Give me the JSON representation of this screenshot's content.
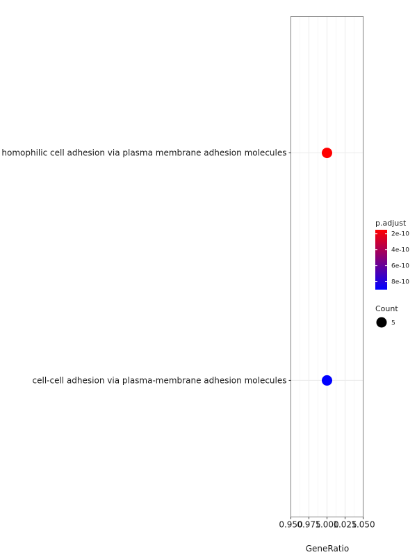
{
  "chart_data": {
    "type": "scatter",
    "title": "",
    "xlabel": "GeneRatio",
    "ylabel": "",
    "xlim": [
      0.95,
      1.05
    ],
    "x_ticks": [
      0.95,
      0.975,
      1.0,
      1.025,
      1.05
    ],
    "x_tick_labels": [
      "0.950",
      "0.975",
      "1.000",
      "1.025",
      "1.050"
    ],
    "grid": true,
    "legend_placement": "right",
    "categories": [
      "homophilic cell adhesion via plasma membrane adhesion molecules",
      "cell-cell adhesion via plasma-membrane adhesion molecules"
    ],
    "points": [
      {
        "term": "homophilic cell adhesion via plasma membrane adhesion molecules",
        "gene_ratio": 1.0,
        "count": 5,
        "p_adjust": 2e-10,
        "color": "#ff0000"
      },
      {
        "term": "cell-cell adhesion via plasma-membrane adhesion molecules",
        "gene_ratio": 1.0,
        "count": 5,
        "p_adjust": 9e-10,
        "color": "#0000ff"
      }
    ],
    "color_legend": {
      "title": "p.adjust",
      "low_color": "#ff0000",
      "high_color": "#0000ff",
      "range": [
        1.5e-10,
        9e-10
      ],
      "ticks": [
        2e-10,
        4e-10,
        6e-10,
        8e-10
      ],
      "tick_labels": [
        "2e-10",
        "4e-10",
        "6e-10",
        "8e-10"
      ]
    },
    "size_legend": {
      "title": "Count",
      "values": [
        5
      ],
      "labels": [
        "5"
      ]
    }
  }
}
